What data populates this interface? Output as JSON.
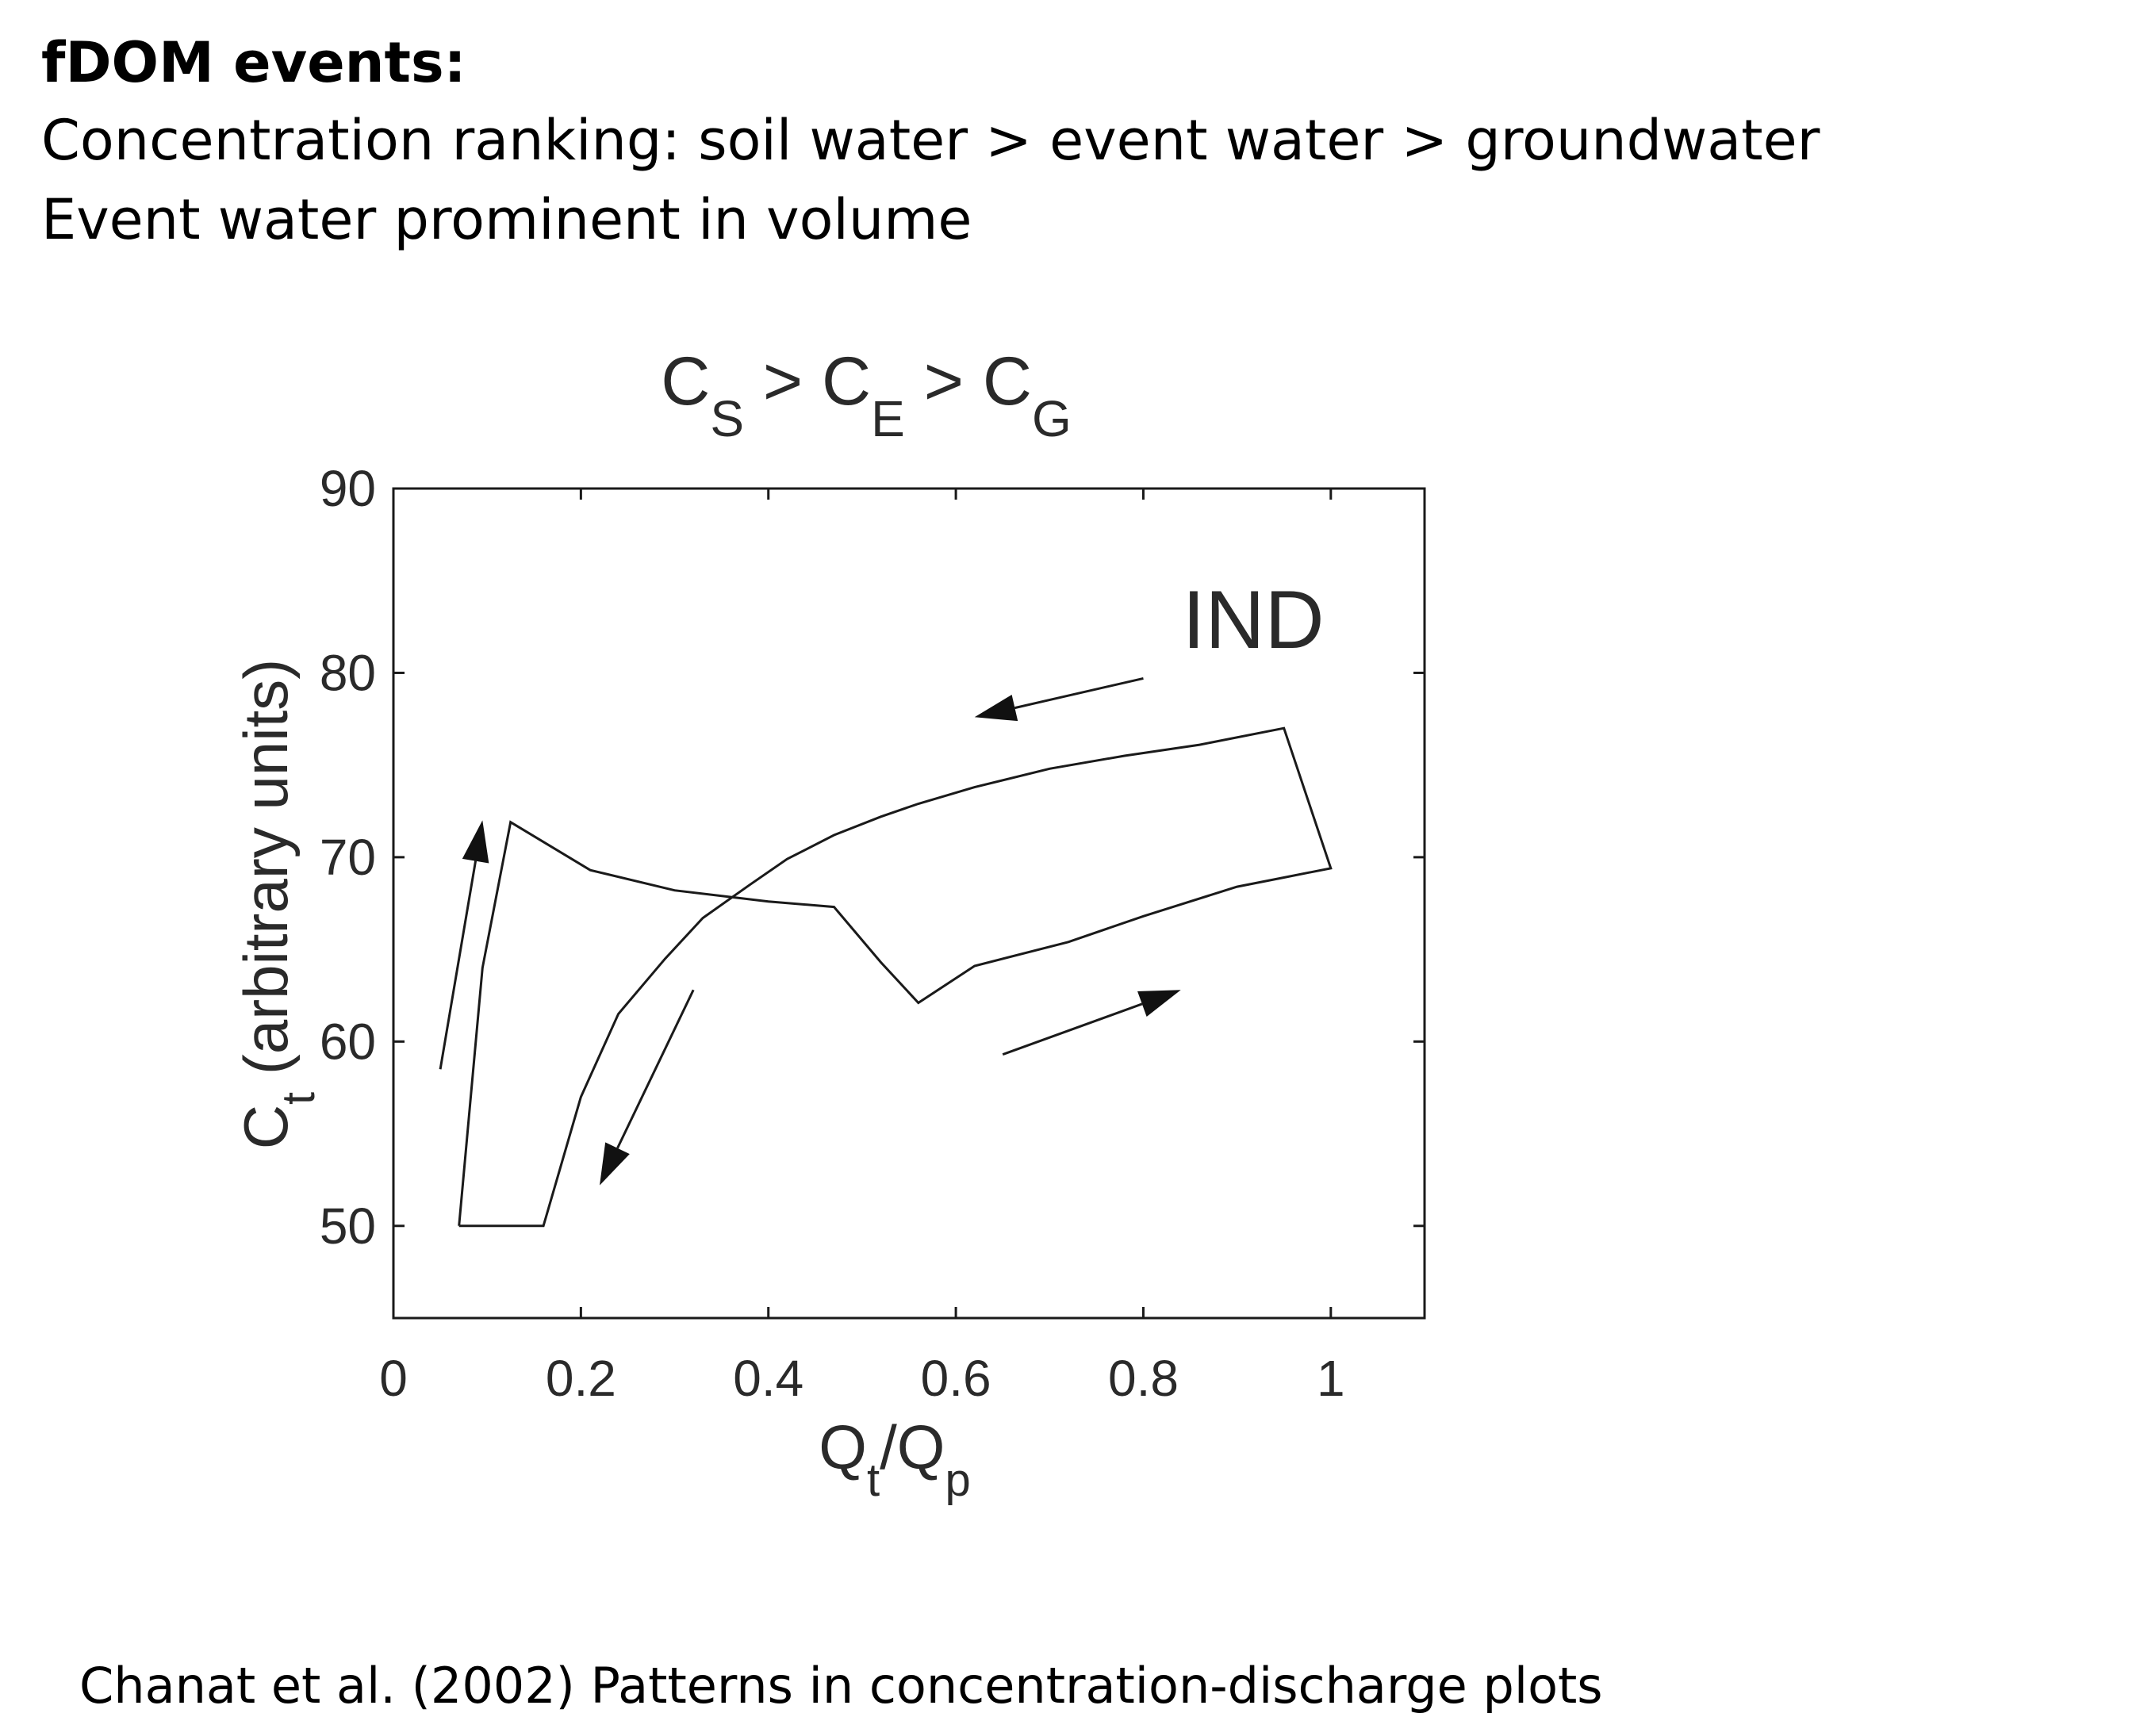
{
  "slide": {
    "heading": "fDOM events:",
    "line1": "Concentration ranking: soil water > event water > groundwater",
    "line2": "Event water prominent in volume",
    "citation": "Chanat et al. (2002) Patterns in concentration-discharge plots"
  },
  "chart_data": {
    "type": "line",
    "title": {
      "parts": [
        {
          "text": "C",
          "sub": "S"
        },
        {
          "text": " > C",
          "sub": "E"
        },
        {
          "text": " > C",
          "sub": "G"
        }
      ]
    },
    "xlabel": {
      "main": "Q",
      "sub1": "t",
      "mid": "/Q",
      "sub2": "p"
    },
    "ylabel": {
      "main": "C",
      "sub": "t",
      "rest": " (arbitrary units)"
    },
    "annotation": "IND",
    "xlim": [
      0,
      1.1
    ],
    "ylim": [
      45,
      90
    ],
    "xticks": [
      0,
      0.2,
      0.4,
      0.6,
      0.8,
      1
    ],
    "xtick_labels": [
      "0",
      "0.2",
      "0.4",
      "0.6",
      "0.8",
      "1"
    ],
    "yticks": [
      50,
      60,
      70,
      80,
      90
    ],
    "ytick_labels": [
      "50",
      "60",
      "70",
      "80",
      "90"
    ],
    "grid": false,
    "series": [
      {
        "x": [
          0.07,
          0.16,
          0.2,
          0.24,
          0.29,
          0.33,
          0.38,
          0.42,
          0.47,
          0.52,
          0.56,
          0.62,
          0.7,
          0.8,
          0.9,
          0.96,
          0.95,
          0.9,
          0.8,
          0.7,
          0.62,
          0.56,
          0.52,
          0.47,
          0.4,
          0.3,
          0.2,
          0.125,
          0.095,
          0.07
        ],
        "y": [
          50,
          50,
          57,
          61.5,
          64.5,
          66.7,
          68.5,
          69.9,
          71.2,
          72.2,
          72.9,
          73.8,
          74.8,
          75.7,
          76.4,
          69.4,
          77,
          76.4,
          75.7,
          74.8,
          73.8,
          72.9,
          72.2,
          71.2,
          69.9,
          68.2,
          69.3,
          71.9,
          64,
          50
        ],
        "segments_note": ""
      }
    ],
    "loop": {
      "x": [
        0.07,
        0.16,
        0.2,
        0.24,
        0.29,
        0.33,
        0.38,
        0.42,
        0.47,
        0.52,
        0.56,
        0.62,
        0.7,
        0.78,
        0.86,
        0.95,
        1.0,
        0.95,
        0.9,
        0.8,
        0.72,
        0.62,
        0.56,
        0.52,
        0.47,
        0.4,
        0.3,
        0.21,
        0.125,
        0.095,
        0.07
      ],
      "y": [
        50,
        50,
        57,
        61.5,
        64.5,
        66.7,
        68.5,
        69.9,
        71.2,
        72.2,
        72.9,
        73.8,
        74.8,
        75.5,
        76.1,
        77,
        69.4,
        68.9,
        68.4,
        66.8,
        65.4,
        64.1,
        62.1,
        64.3,
        67.3,
        67.6,
        68.2,
        69.3,
        71.9,
        64,
        50
      ]
    },
    "arrows": [
      {
        "from": [
          0.05,
          58.5
        ],
        "to": [
          0.095,
          72
        ]
      },
      {
        "from": [
          0.32,
          62.8
        ],
        "to": [
          0.22,
          52.2
        ]
      },
      {
        "from": [
          0.65,
          59.3
        ],
        "to": [
          0.84,
          62.8
        ]
      },
      {
        "from": [
          0.8,
          79.7
        ],
        "to": [
          0.62,
          77.6
        ]
      }
    ]
  }
}
